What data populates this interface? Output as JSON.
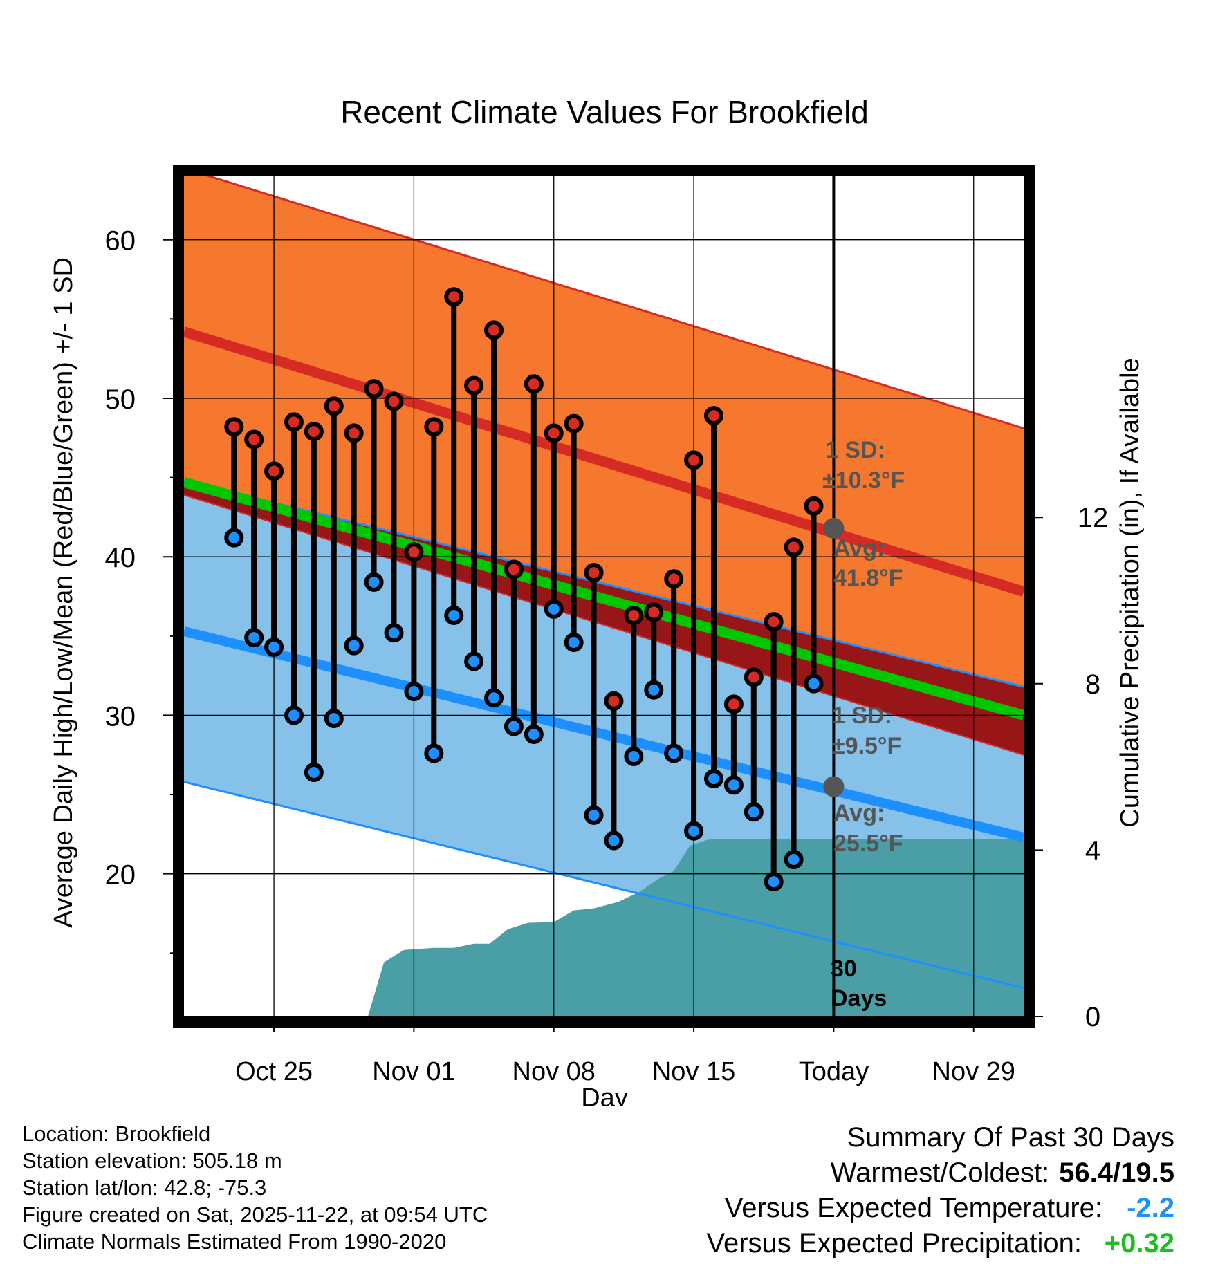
{
  "chart_data": {
    "type": "line",
    "title": "Recent Climate Values For Brookfield",
    "xlabel": "Day",
    "ylabel_left": "Average Daily High/Low/Mean (Red/Blue/Green) +/- 1 SD",
    "ylabel_right": "Cumulative Precipitation (in), If Available",
    "x_range_days": [
      -29.5,
      12.5
    ],
    "ylim_left": [
      11,
      64
    ],
    "ylim_right": [
      0,
      20.2
    ],
    "x_ticks": [
      {
        "day": -25,
        "label": "Oct 25"
      },
      {
        "day": -18,
        "label": "Nov 01"
      },
      {
        "day": -11,
        "label": "Nov 08"
      },
      {
        "day": -4,
        "label": "Nov 15"
      },
      {
        "day": 3,
        "label": "Today"
      },
      {
        "day": 10,
        "label": "Nov 29"
      }
    ],
    "y_ticks_left": [
      20,
      30,
      40,
      50,
      60
    ],
    "y_ticks_right": [
      0,
      4,
      8,
      12
    ],
    "normal_high": {
      "start": 54.2,
      "end": 37.8,
      "sd": 10.3
    },
    "normal_low": {
      "start": 35.3,
      "end": 22.3,
      "sd": 9.5
    },
    "normal_mean": {
      "start": 44.7,
      "end": 30.0
    },
    "today_label": "Today",
    "window_label": "30 Days",
    "high_annotation": {
      "sd_label": "1 SD:",
      "sd_value": "±10.3°F",
      "avg_label": "Avg:",
      "avg_value": "41.8°F",
      "avg": 41.8
    },
    "low_annotation": {
      "sd_label": "1 SD:",
      "sd_value": "±9.5°F",
      "avg_label": "Avg:",
      "avg_value": "25.5°F",
      "avg": 25.5
    },
    "observed": [
      {
        "day": -27,
        "high": 48.2,
        "low": 41.2
      },
      {
        "day": -26,
        "high": 47.4,
        "low": 34.9
      },
      {
        "day": -25,
        "high": 45.4,
        "low": 34.3
      },
      {
        "day": -24,
        "high": 48.5,
        "low": 30.0
      },
      {
        "day": -23,
        "high": 47.9,
        "low": 26.4
      },
      {
        "day": -22,
        "high": 49.5,
        "low": 29.8
      },
      {
        "day": -21,
        "high": 47.8,
        "low": 34.4
      },
      {
        "day": -20,
        "high": 50.6,
        "low": 38.4
      },
      {
        "day": -19,
        "high": 49.8,
        "low": 35.2
      },
      {
        "day": -18,
        "high": 40.3,
        "low": 31.5
      },
      {
        "day": -17,
        "high": 48.2,
        "low": 27.6
      },
      {
        "day": -16,
        "high": 56.4,
        "low": 36.3
      },
      {
        "day": -15,
        "high": 50.8,
        "low": 33.4
      },
      {
        "day": -14,
        "high": 54.3,
        "low": 31.1
      },
      {
        "day": -13,
        "high": 39.2,
        "low": 29.3
      },
      {
        "day": -12,
        "high": 50.9,
        "low": 28.8
      },
      {
        "day": -11,
        "high": 47.8,
        "low": 36.7
      },
      {
        "day": -10,
        "high": 48.4,
        "low": 34.6
      },
      {
        "day": -9,
        "high": 39.0,
        "low": 23.7
      },
      {
        "day": -8,
        "high": 30.9,
        "low": 22.1
      },
      {
        "day": -7,
        "high": 36.3,
        "low": 27.4
      },
      {
        "day": -6,
        "high": 36.5,
        "low": 31.6
      },
      {
        "day": -5,
        "high": 38.6,
        "low": 27.6
      },
      {
        "day": -4,
        "high": 46.1,
        "low": 22.7
      },
      {
        "day": -3,
        "high": 48.9,
        "low": 26.0
      },
      {
        "day": -2,
        "high": 30.7,
        "low": 25.6
      },
      {
        "day": -1,
        "high": 32.4,
        "low": 23.9
      },
      {
        "day": 0,
        "high": 35.9,
        "low": 19.5
      },
      {
        "day": 1,
        "high": 40.6,
        "low": 20.9
      },
      {
        "day": 2,
        "high": 43.2,
        "low": 32.0
      }
    ],
    "cumulative_precip": [
      {
        "day": -27,
        "value": 0
      },
      {
        "day": -20.3,
        "value": 0
      },
      {
        "day": -19.5,
        "value": 1.3
      },
      {
        "day": -18.5,
        "value": 1.6
      },
      {
        "day": -17,
        "value": 1.65
      },
      {
        "day": -16,
        "value": 1.65
      },
      {
        "day": -15,
        "value": 1.75
      },
      {
        "day": -14.2,
        "value": 1.75
      },
      {
        "day": -13.3,
        "value": 2.1
      },
      {
        "day": -12.3,
        "value": 2.25
      },
      {
        "day": -11,
        "value": 2.27
      },
      {
        "day": -10,
        "value": 2.55
      },
      {
        "day": -9,
        "value": 2.6
      },
      {
        "day": -7.8,
        "value": 2.75
      },
      {
        "day": -6.7,
        "value": 3.0
      },
      {
        "day": -5.8,
        "value": 3.3
      },
      {
        "day": -5,
        "value": 3.5
      },
      {
        "day": -4.2,
        "value": 4.1
      },
      {
        "day": -3.3,
        "value": 4.25
      },
      {
        "day": -2.5,
        "value": 4.27
      },
      {
        "day": 12.5,
        "value": 4.27
      }
    ],
    "colors": {
      "high_band": "#f5782e",
      "high_line": "#d62a24",
      "low_band": "#85c1e9",
      "low_line": "#1e8fff",
      "mean_line": "#00c800",
      "overlap": "#981518",
      "precip": "#4a9ea6",
      "high_dot": "#d62a24",
      "low_dot": "#1e8fff",
      "annotation": "#555555"
    }
  },
  "info": {
    "location": "Location: Brookfield",
    "elevation": "Station elevation: 505.18 m",
    "latlon": "Station lat/lon: 42.8; -75.3",
    "created": "Figure created on Sat, 2025-11-22, at 09:54 UTC",
    "normals": "Climate Normals Estimated From 1990-2020"
  },
  "summary": {
    "title": "Summary Of Past 30 Days",
    "warmest_label": "Warmest/Coldest:",
    "warmest_value": "56.4/19.5",
    "temp_label": "Versus Expected Temperature:",
    "temp_value": "-2.2",
    "precip_label": "Versus Expected Precipitation:",
    "precip_value": "+0.32"
  }
}
